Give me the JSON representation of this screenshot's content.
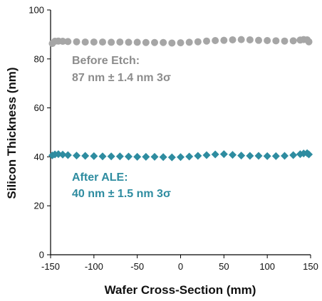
{
  "chart_data": {
    "type": "scatter",
    "title": "",
    "xlabel": "Wafer Cross-Section (mm)",
    "ylabel": "Silicon Thickness (nm)",
    "xlim": [
      -150,
      150
    ],
    "ylim": [
      0,
      100
    ],
    "xticks": [
      -150,
      -100,
      -50,
      0,
      50,
      100,
      150
    ],
    "yticks": [
      0,
      20,
      40,
      60,
      80,
      100
    ],
    "grid": false,
    "series": [
      {
        "marker": "circle",
        "color": "#a6a6a6",
        "x": [
          -148,
          -145,
          -141,
          -136,
          -130,
          -120,
          -110,
          -100,
          -90,
          -80,
          -70,
          -60,
          -50,
          -40,
          -30,
          -20,
          -10,
          0,
          10,
          20,
          30,
          40,
          50,
          60,
          70,
          80,
          90,
          100,
          110,
          120,
          130,
          138,
          142,
          146,
          148
        ],
        "y": [
          86.3,
          87.2,
          87.3,
          87.2,
          87.1,
          87.0,
          86.9,
          86.9,
          86.9,
          86.8,
          86.9,
          86.8,
          86.8,
          86.7,
          86.7,
          86.7,
          86.5,
          86.6,
          86.8,
          87.0,
          87.3,
          87.5,
          87.6,
          87.8,
          87.9,
          87.8,
          87.6,
          87.5,
          87.4,
          87.3,
          87.4,
          87.7,
          87.9,
          87.8,
          87.0
        ]
      },
      {
        "marker": "diamond",
        "color": "#2e8ca0",
        "x": [
          -148,
          -145,
          -141,
          -136,
          -130,
          -120,
          -110,
          -100,
          -90,
          -80,
          -70,
          -60,
          -50,
          -40,
          -30,
          -20,
          -10,
          0,
          10,
          20,
          30,
          40,
          50,
          60,
          70,
          80,
          90,
          100,
          110,
          120,
          130,
          138,
          142,
          146,
          148
        ],
        "y": [
          40.6,
          41.0,
          41.1,
          40.9,
          40.7,
          40.5,
          40.4,
          40.3,
          40.2,
          40.2,
          40.2,
          40.1,
          40.0,
          40.0,
          40.0,
          39.9,
          39.8,
          39.9,
          40.1,
          40.4,
          40.7,
          41.0,
          41.1,
          40.8,
          40.5,
          40.4,
          40.4,
          40.3,
          40.3,
          40.4,
          40.7,
          41.1,
          41.4,
          41.5,
          41.0
        ]
      }
    ],
    "annotations": [
      {
        "line1": "Before Etch:",
        "line2": "87 nm ± 1.4 nm 3σ",
        "color": "#8c8c8c"
      },
      {
        "line1": "After ALE:",
        "line2": "40 nm ± 1.5 nm 3σ",
        "color": "#2e8ca0"
      }
    ]
  }
}
